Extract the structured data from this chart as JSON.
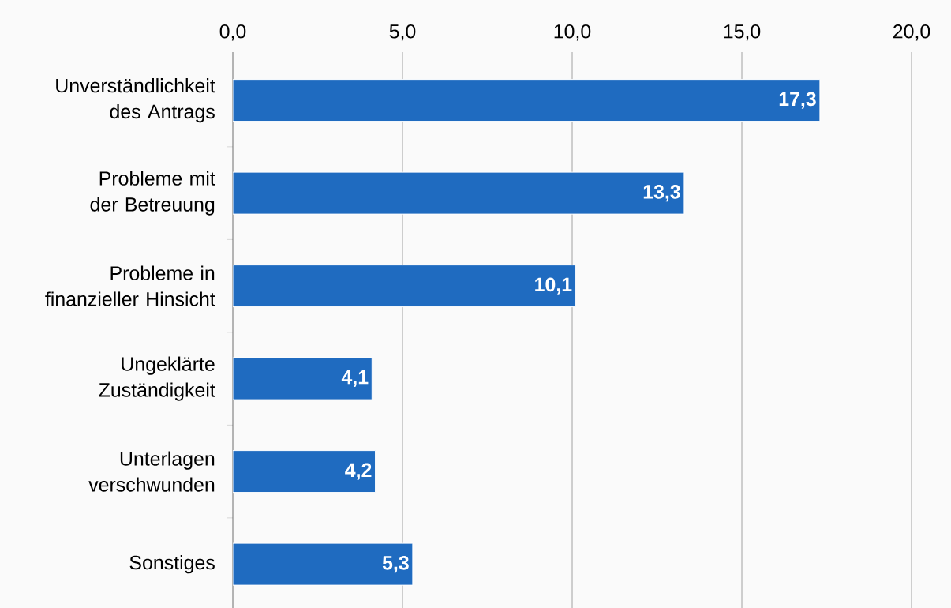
{
  "chart_data": {
    "type": "bar",
    "orientation": "horizontal",
    "categories": [
      "Unverständlichkeit des Antrags",
      "Probleme mit der Betreuung",
      "Probleme in finanzieller Hinsicht",
      "Ungeklärte Zuständigkeit",
      "Unterlagen verschwunden",
      "Sonstiges"
    ],
    "values": [
      17.3,
      13.3,
      10.1,
      4.1,
      4.2,
      5.3
    ],
    "value_labels": [
      "17,3",
      "13,3",
      "10,1",
      "4,1",
      "4,2",
      "5,3"
    ],
    "color": "#1f6bc0",
    "xlim": [
      0,
      20
    ],
    "xticks": [
      {
        "value": 0,
        "label": "0,0"
      },
      {
        "value": 5,
        "label": "5,0"
      },
      {
        "value": 10,
        "label": "10,0"
      },
      {
        "value": 15,
        "label": "15,0"
      },
      {
        "value": 20,
        "label": "20,0"
      }
    ],
    "grid": "x"
  }
}
